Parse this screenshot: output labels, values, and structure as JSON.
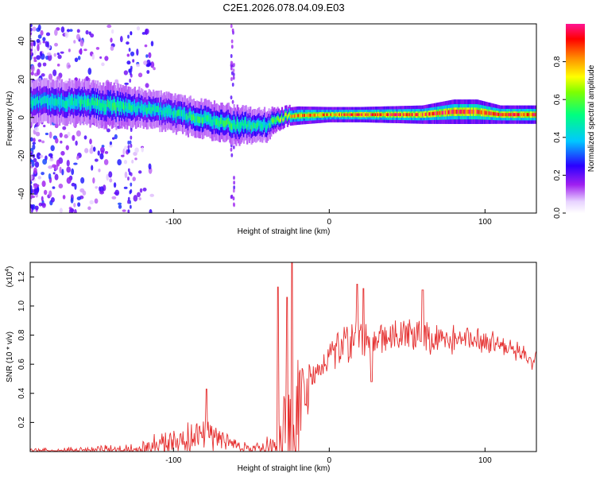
{
  "title": "C2E1.2026.078.04.09.E03",
  "colors": {
    "line": "#e53030",
    "axis": "#000000",
    "background": "#ffffff"
  },
  "chart_data": [
    {
      "type": "heatmap",
      "name": "spectrogram",
      "xlabel": "Height of straight line (km)",
      "ylabel": "Frequency (Hz)",
      "xlim": [
        -192,
        133
      ],
      "ylim": [
        -50,
        49
      ],
      "xticks": [
        -100,
        0,
        100
      ],
      "yticks": [
        -40,
        -20,
        0,
        20,
        40
      ],
      "colorbar": {
        "label": "Normalized spectral amplitude",
        "range": [
          0,
          1
        ],
        "ticks": [
          0.0,
          0.2,
          0.4,
          0.6,
          0.8
        ],
        "colormap": [
          "#ffffff",
          "#d7b8ff",
          "#8a2be2",
          "#2a00ff",
          "#00c8ff",
          "#00ff7f",
          "#ffff00",
          "#ff8c00",
          "#ff0000",
          "#ff1493"
        ]
      },
      "ridge": {
        "x": [
          -185,
          -160,
          -140,
          -120,
          -100,
          -80,
          -60,
          -40,
          -30,
          -20,
          0,
          20,
          60,
          80,
          95,
          110,
          133
        ],
        "freq": [
          8,
          8,
          6,
          5,
          2,
          -1,
          -4,
          -4,
          0,
          1,
          1.5,
          1.5,
          1.5,
          3,
          3,
          1.5,
          1.5
        ],
        "width_hz": [
          7,
          7,
          7,
          6,
          6,
          6,
          6,
          5,
          3,
          3,
          2.5,
          2.5,
          3,
          4,
          4,
          3,
          3
        ],
        "peak_amplitude": [
          0.45,
          0.5,
          0.55,
          0.5,
          0.5,
          0.55,
          0.55,
          0.5,
          0.7,
          0.85,
          0.85,
          0.95,
          0.9,
          0.95,
          0.95,
          0.95,
          0.95
        ]
      }
    },
    {
      "type": "line",
      "name": "snr",
      "xlabel": "Height of straight line (km)",
      "ylabel": "SNR (10 * v/v)",
      "scale_note": "(x10",
      "scale_exp": "4",
      "xlim": [
        -192,
        133
      ],
      "ylim": [
        0,
        1.3
      ],
      "xticks": [
        -100,
        0,
        100
      ],
      "yticks": [
        0.2,
        0.4,
        0.6,
        0.8,
        1.0,
        1.2
      ],
      "ytick_labels": [
        "0.2",
        "0.4",
        "0.6",
        "0.8",
        "1.0",
        "1.2"
      ],
      "series": [
        {
          "name": "SNR",
          "envelope_x": [
            -192,
            -150,
            -130,
            -110,
            -100,
            -90,
            -80,
            -70,
            -60,
            -50,
            -40,
            -32,
            -28,
            -25,
            -22,
            -19,
            -10,
            0,
            10,
            20,
            25,
            30,
            40,
            50,
            60,
            80,
            100,
            110,
            120,
            125,
            130,
            133
          ],
          "envelope_y": [
            0.02,
            0.03,
            0.05,
            0.1,
            0.15,
            0.18,
            0.22,
            0.16,
            0.08,
            0.04,
            0.1,
            0.3,
            0.5,
            0.6,
            0.65,
            0.6,
            0.6,
            0.75,
            0.85,
            0.9,
            0.82,
            0.85,
            0.9,
            0.92,
            0.88,
            0.85,
            0.85,
            0.8,
            0.75,
            0.72,
            0.65,
            0.68
          ],
          "noise_y": [
            0.02,
            0.03,
            0.04,
            0.1,
            0.1,
            0.1,
            0.12,
            0.09,
            0.04,
            0.03,
            0.1,
            0.25,
            0.45,
            0.55,
            0.6,
            0.35,
            0.1,
            0.1,
            0.15,
            0.15,
            0.12,
            0.12,
            0.12,
            0.12,
            0.12,
            0.1,
            0.1,
            0.08,
            0.08,
            0.06,
            0.05,
            0.05
          ],
          "spikes": [
            {
              "x": -79,
              "y": 0.43
            },
            {
              "x": -33,
              "y": 1.13
            },
            {
              "x": -27,
              "y": 1.06
            },
            {
              "x": -24,
              "y": 1.3
            },
            {
              "x": 18,
              "y": 1.15
            },
            {
              "x": 22,
              "y": 1.12
            },
            {
              "x": 60,
              "y": 1.11
            }
          ],
          "dip": {
            "x": 27,
            "y": 0.48
          }
        }
      ]
    }
  ]
}
